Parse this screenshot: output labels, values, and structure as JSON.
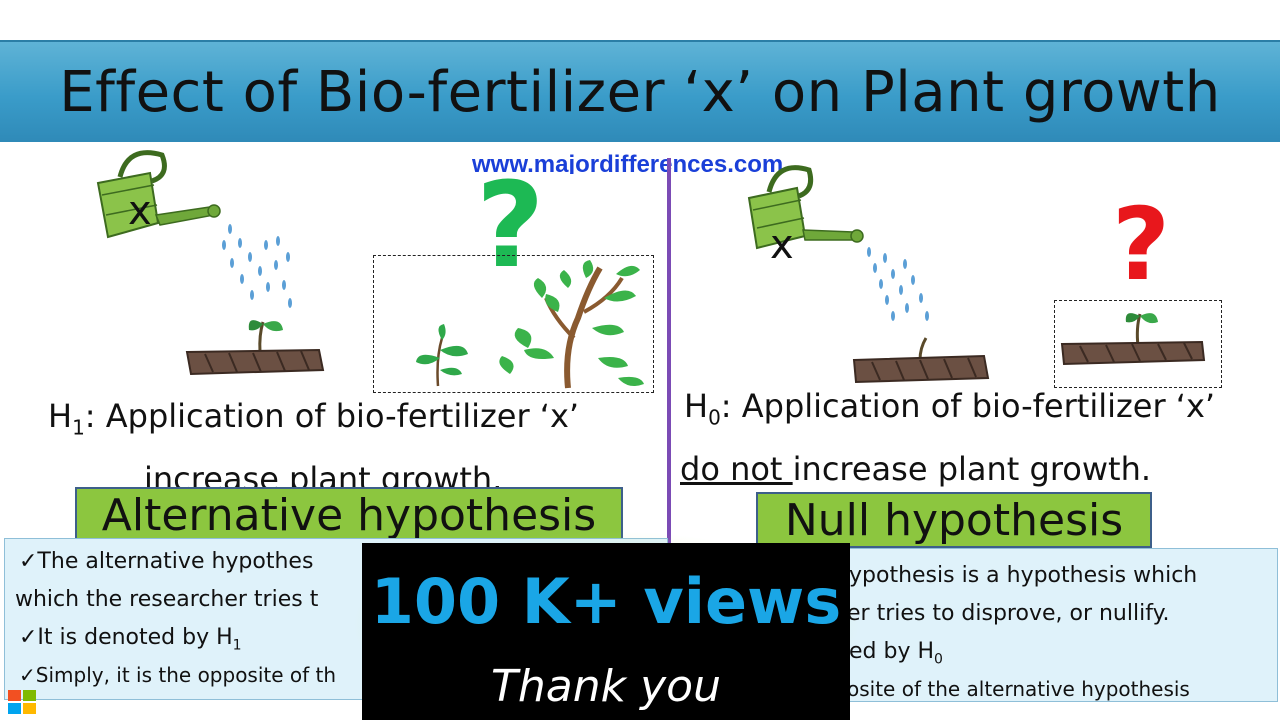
{
  "title": "Effect of Bio-fertilizer ‘x’ on  Plant growth",
  "watermark": "www.majordifferences.com",
  "left": {
    "can_label": "x",
    "question_mark": "?",
    "question_color": "#1db954",
    "hypothesis_prefix": "H",
    "hypothesis_sub": "1",
    "hypothesis_line1": ": Application of bio-fertilizer ‘x’",
    "hypothesis_line2": "increase plant growth.",
    "label": "Alternative hypothesis",
    "info": {
      "line1": "✓The alternative hypothes",
      "line2": "which the researcher tries t",
      "line3_prefix": "✓It is denoted by H",
      "line3_sub": "1",
      "line4": "✓Simply, it is the opposite of th"
    }
  },
  "right": {
    "can_label": "x",
    "question_mark": "?",
    "question_color": "#e8171c",
    "hypothesis_prefix": "H",
    "hypothesis_sub": "0",
    "hypothesis_line1": ": Application of bio-fertilizer ‘x’",
    "hypothesis_underlined": "do not ",
    "hypothesis_line2": "increase plant growth.",
    "label": "Null hypothesis",
    "info": {
      "line1": "ypothesis is a hypothesis which",
      "line2": "er tries to disprove, or nullify.",
      "line3_prefix": "ed by H",
      "line3_sub": "0",
      "line4": "osite of the alternative hypothesis"
    }
  },
  "overlay": {
    "views": "100 K+ views",
    "thanks": "Thank you"
  },
  "icons": [
    "watering-can-icon",
    "seedling-icon",
    "plant-icon",
    "windows-logo-icon"
  ]
}
